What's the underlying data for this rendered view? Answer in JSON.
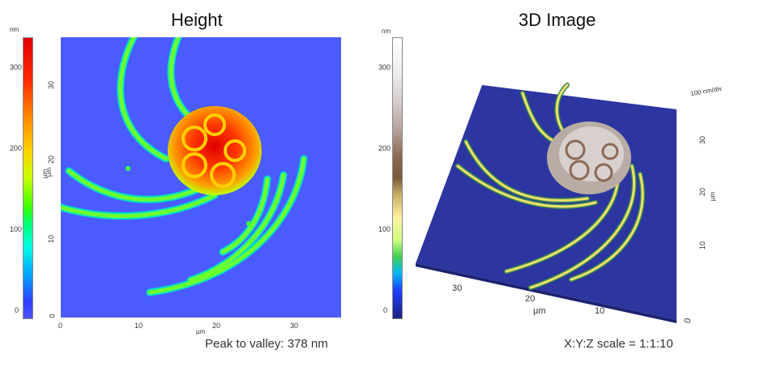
{
  "left_panel": {
    "title": "Height",
    "colorbar": {
      "unit": "nm",
      "label": "µm",
      "ticks": [
        "300",
        "200",
        "100",
        "0"
      ]
    },
    "y_axis": {
      "label": "µm",
      "ticks": [
        "30",
        "20",
        "10",
        "0"
      ]
    },
    "x_axis": {
      "label": "µm",
      "ticks": [
        "0",
        "10",
        "20",
        "30"
      ]
    },
    "caption": "Peak to valley: 378 nm"
  },
  "right_panel": {
    "title": "3D Image",
    "colorbar": {
      "unit": "nm",
      "ticks": [
        "300",
        "200",
        "100",
        "0"
      ]
    },
    "z_label": "100 nm/div",
    "side_axis": {
      "label": "µm",
      "ticks": [
        "30",
        "20",
        "10"
      ]
    },
    "front_axis": {
      "label": "µm",
      "ticks": [
        "30",
        "20",
        "10",
        "0"
      ]
    },
    "caption": "X:Y:Z scale = 1:1:10"
  }
}
